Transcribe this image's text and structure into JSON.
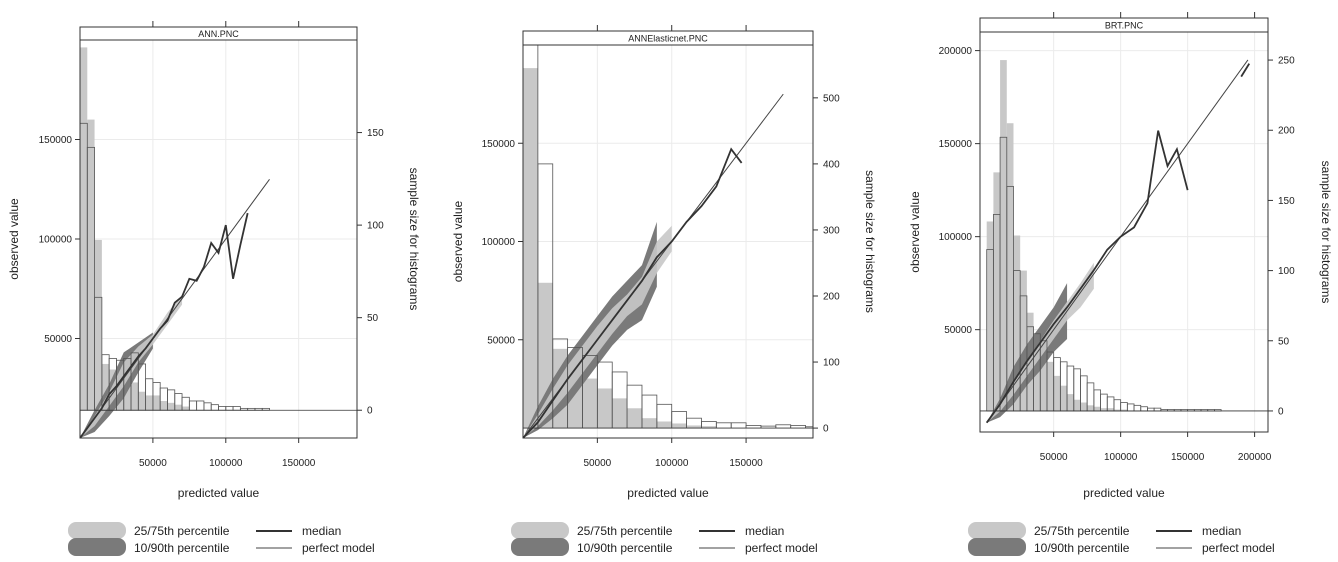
{
  "chart_data": [
    {
      "type": "line",
      "strip_label": "ANN.PNC",
      "xlabel": "predicted value",
      "ylabel": "observed value",
      "y2label": "sample size for histograms",
      "xlim": [
        0,
        190000
      ],
      "ylim": [
        0,
        200000
      ],
      "y2lim": [
        -15,
        200
      ],
      "x_ticks": [
        50000,
        100000,
        150000
      ],
      "x_tick_labels": [
        "50000",
        "100000",
        "150000"
      ],
      "y_ticks": [
        50000,
        100000,
        150000
      ],
      "y_tick_labels": [
        "50000",
        "100000",
        "150000"
      ],
      "y2_ticks": [
        0,
        50,
        100,
        150
      ],
      "y2_tick_labels": [
        "0",
        "50",
        "100",
        "150"
      ],
      "grid": true,
      "perfect_model": {
        "x": [
          0,
          130000
        ],
        "y": [
          0,
          130000
        ]
      },
      "median": {
        "x": [
          0,
          5000,
          10000,
          15000,
          20000,
          25000,
          30000,
          35000,
          40000,
          45000,
          50000,
          55000,
          60000,
          65000,
          70000,
          75000,
          80000,
          85000,
          90000,
          95000,
          100000,
          105000,
          110000,
          115000
        ],
        "y": [
          0,
          5000,
          10000,
          15000,
          22000,
          26000,
          31000,
          36000,
          41000,
          45000,
          50000,
          55000,
          59000,
          68000,
          71000,
          80000,
          79000,
          86000,
          98000,
          93000,
          107000,
          80000,
          97000,
          113000
        ]
      },
      "band_10_90": {
        "x": [
          0,
          10000,
          20000,
          30000,
          40000,
          50000
        ],
        "lower": [
          0,
          3000,
          11000,
          20000,
          33000,
          45000
        ],
        "upper": [
          0,
          14000,
          27000,
          43000,
          48000,
          53000
        ]
      },
      "band_25_75": {
        "x": [
          0,
          10000,
          20000,
          30000,
          40000,
          50000,
          60000,
          70000
        ],
        "lower": [
          0,
          6000,
          16000,
          26000,
          38000,
          47000,
          57000,
          67000
        ],
        "upper": [
          0,
          11000,
          23000,
          38000,
          46000,
          52000,
          63000,
          72000
        ]
      },
      "histogram_grey": {
        "bin_width": 5000,
        "x_start": 0,
        "counts": [
          196,
          157,
          92,
          25,
          22,
          24,
          22,
          15,
          10,
          8,
          8,
          5,
          4,
          3,
          2
        ]
      },
      "histogram_outline": {
        "bin_width": 5000,
        "x_start": 0,
        "counts": [
          155,
          142,
          61,
          30,
          28,
          27,
          28,
          31,
          25,
          17,
          15,
          12,
          11,
          9,
          7,
          5,
          5,
          4,
          3,
          2,
          2,
          2,
          1,
          1,
          1,
          1
        ]
      }
    },
    {
      "type": "line",
      "strip_label": "ANNElasticnet.PNC",
      "xlabel": "predicted value",
      "ylabel": "observed value",
      "y2label": "sample size for histograms",
      "xlim": [
        0,
        195000
      ],
      "ylim": [
        0,
        200000
      ],
      "y2lim": [
        -15,
        580
      ],
      "x_ticks": [
        50000,
        100000,
        150000
      ],
      "x_tick_labels": [
        "50000",
        "100000",
        "150000"
      ],
      "y_ticks": [
        50000,
        100000,
        150000
      ],
      "y_tick_labels": [
        "50000",
        "100000",
        "150000"
      ],
      "y2_ticks": [
        0,
        100,
        200,
        300,
        400,
        500
      ],
      "y2_tick_labels": [
        "0",
        "100",
        "200",
        "300",
        "400",
        "500"
      ],
      "grid": true,
      "perfect_model": {
        "x": [
          0,
          175000
        ],
        "y": [
          0,
          175000
        ]
      },
      "median": {
        "x": [
          0,
          10000,
          20000,
          30000,
          40000,
          50000,
          60000,
          70000,
          80000,
          90000,
          100000,
          110000,
          120000,
          130000,
          140000,
          147000
        ],
        "y": [
          0,
          8000,
          19000,
          30000,
          40000,
          50000,
          60000,
          70000,
          80000,
          92000,
          100000,
          110000,
          118000,
          128000,
          147000,
          140000
        ]
      },
      "band_10_90": {
        "x": [
          0,
          10000,
          20000,
          30000,
          40000,
          50000,
          60000,
          70000,
          80000,
          90000
        ],
        "lower": [
          0,
          4000,
          10000,
          17000,
          27000,
          37000,
          47000,
          55000,
          60000,
          77000
        ],
        "upper": [
          0,
          16000,
          30000,
          42000,
          52000,
          62000,
          72000,
          80000,
          88000,
          110000
        ]
      },
      "band_25_75": {
        "x": [
          0,
          10000,
          20000,
          30000,
          40000,
          50000,
          60000,
          70000,
          80000,
          90000,
          100000
        ],
        "lower": [
          0,
          6000,
          14000,
          23000,
          33000,
          43000,
          53000,
          62000,
          68000,
          84000,
          95000
        ],
        "upper": [
          0,
          12000,
          25000,
          37000,
          47000,
          57000,
          66000,
          73000,
          82000,
          100000,
          108000
        ]
      },
      "histogram_grey": {
        "bin_width": 10000,
        "x_start": 0,
        "counts": [
          545,
          220,
          120,
          100,
          75,
          60,
          45,
          30,
          15,
          10,
          7,
          4,
          3
        ]
      },
      "histogram_outline": {
        "bin_width": 10000,
        "x_start": 0,
        "counts": [
          580,
          400,
          135,
          122,
          110,
          100,
          85,
          65,
          50,
          36,
          25,
          15,
          10,
          8,
          8,
          4,
          3,
          5,
          4,
          2
        ]
      }
    },
    {
      "type": "line",
      "strip_label": "BRT.PNC",
      "xlabel": "predicted value",
      "ylabel": "observed value",
      "y2label": "sample size for histograms",
      "xlim": [
        -5000,
        210000
      ],
      "ylim": [
        -5000,
        210000
      ],
      "y2lim": [
        -15,
        270
      ],
      "x_ticks": [
        50000,
        100000,
        150000,
        200000
      ],
      "x_tick_labels": [
        "50000",
        "100000",
        "150000",
        "200000"
      ],
      "y_ticks": [
        50000,
        100000,
        150000,
        200000
      ],
      "y_tick_labels": [
        "50000",
        "100000",
        "150000",
        "200000"
      ],
      "y2_ticks": [
        0,
        50,
        100,
        150,
        200,
        250
      ],
      "y2_tick_labels": [
        "0",
        "50",
        "100",
        "150",
        "200",
        "250"
      ],
      "grid": true,
      "perfect_model": {
        "x": [
          0,
          195000
        ],
        "y": [
          0,
          195000
        ]
      },
      "median": {
        "x": [
          0,
          10000,
          20000,
          30000,
          40000,
          50000,
          60000,
          70000,
          80000,
          90000,
          100000,
          110000,
          120000,
          128000,
          135000,
          142000,
          150000
        ],
        "y": [
          0,
          10000,
          22000,
          33000,
          43000,
          53000,
          62000,
          72000,
          82000,
          93000,
          100000,
          105000,
          118000,
          157000,
          138000,
          147000,
          125000
        ]
      },
      "median_upper": {
        "x": [
          190000,
          196000
        ],
        "y": [
          186000,
          193000
        ]
      },
      "band_10_90": {
        "x": [
          0,
          10000,
          20000,
          30000,
          40000,
          50000,
          60000
        ],
        "lower": [
          0,
          3000,
          10000,
          20000,
          28000,
          38000,
          45000
        ],
        "upper": [
          0,
          13000,
          30000,
          42000,
          52000,
          62000,
          75000
        ]
      },
      "band_25_75": {
        "x": [
          0,
          10000,
          20000,
          30000,
          40000,
          50000,
          60000,
          70000,
          80000
        ],
        "lower": [
          0,
          6000,
          15000,
          25000,
          35000,
          45000,
          55000,
          62000,
          72000
        ],
        "upper": [
          0,
          10000,
          22000,
          33000,
          44000,
          55000,
          65000,
          75000,
          86000
        ]
      },
      "histogram_grey": {
        "bin_width": 5000,
        "x_start": 0,
        "counts": [
          135,
          170,
          250,
          205,
          125,
          100,
          70,
          55,
          48,
          35,
          25,
          18,
          12,
          8,
          6,
          4,
          3,
          2,
          2,
          1,
          1
        ]
      },
      "histogram_outline": {
        "bin_width": 5000,
        "x_start": 0,
        "counts": [
          115,
          140,
          195,
          160,
          100,
          82,
          60,
          55,
          50,
          42,
          38,
          35,
          32,
          30,
          25,
          20,
          15,
          12,
          10,
          8,
          6,
          5,
          4,
          3,
          2,
          2,
          1,
          1,
          1,
          1,
          1,
          1,
          1,
          1,
          1
        ]
      }
    }
  ],
  "legend": {
    "band_25_75_label": "25/75th percentile",
    "band_10_90_label": "10/90th percentile",
    "median_label": "median",
    "perfect_model_label": "perfect model"
  },
  "colors": {
    "band_25_75": "#c8c8c8",
    "band_10_90": "#7a7a7a",
    "median": "#333333",
    "perfect_model": "#444444",
    "histogram_grey": "#c8c8c8",
    "histogram_outline": "#555555",
    "grid": "#ebebeb",
    "axis": "#333333"
  }
}
